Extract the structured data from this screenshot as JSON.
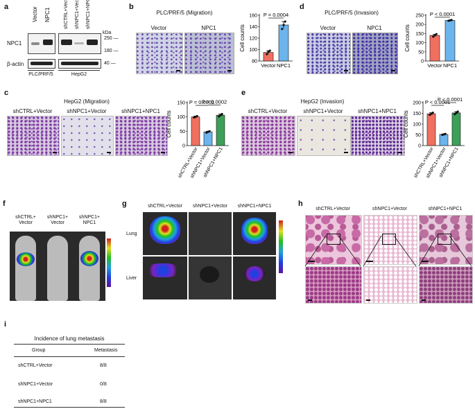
{
  "figure": {
    "panel_labels": [
      "a",
      "b",
      "c",
      "d",
      "e",
      "f",
      "g",
      "h",
      "i"
    ],
    "a": {
      "lane_labels_left": [
        "Vector",
        "NPC1"
      ],
      "lane_labels_right": [
        "shCTRL+Vector",
        "shNPC1+Vector",
        "shNPC1+NPC1"
      ],
      "kda_label": "kDa",
      "row_labels": [
        "NPC1",
        "β-actin"
      ],
      "markers": [
        "250",
        "180",
        "40"
      ],
      "cell_lines": [
        "PLC/PRF/5",
        "HepG2"
      ]
    },
    "b": {
      "title": "PLC/PRF/5 (Migration)",
      "image_labels": [
        "Vector",
        "NPC1"
      ]
    },
    "c": {
      "title": "HepG2 (Migration)",
      "image_labels": [
        "shCTRL+Vector",
        "shNPC1+Vector",
        "shNPC1+NPC1"
      ]
    },
    "d": {
      "title": "PLC/PRF/5 (Invasion)",
      "image_labels": [
        "Vector",
        "NPC1"
      ]
    },
    "e": {
      "title": "HepG2 (Invasion)",
      "image_labels": [
        "shCTRL+Vector",
        "shNPC1+Vector",
        "shNPC1+NPC1"
      ]
    },
    "f": {
      "image_labels": [
        "shCTRL+\nVector",
        "shNPC1+\nVector",
        "shNPC1+\nNPC1"
      ]
    },
    "g": {
      "column_labels": [
        "shCTRL+Vector",
        "shNPC1+Vector",
        "shNPC1+NPC1"
      ],
      "row_labels": [
        "Lung",
        "Liver"
      ]
    },
    "h": {
      "column_labels": [
        "shCTRL+Vector",
        "shNPC1+Vector",
        "shNPC1+NPC1"
      ]
    },
    "i": {
      "title": "Incidence of lung metastasis",
      "headers": [
        "Group",
        "Metastasis"
      ],
      "rows": [
        {
          "group": "shCTRL+Vector",
          "value": "8/8"
        },
        {
          "group": "shNPC1+Vector",
          "value": "0/8"
        },
        {
          "group": "shNPC1+NPC1",
          "value": "8/8"
        }
      ]
    }
  },
  "chart_data": [
    {
      "id": "b",
      "type": "bar",
      "categories": [
        "Vector",
        "NPC1"
      ],
      "values": [
        95,
        143
      ],
      "points": [
        [
          92,
          96,
          98
        ],
        [
          136,
          143,
          149
        ]
      ],
      "errors": [
        3,
        6
      ],
      "colors": [
        "#f07060",
        "#6cb4ec"
      ],
      "ylabel": "Cell counts",
      "ylim": [
        80,
        160
      ],
      "yticks": [
        80,
        100,
        120,
        140,
        160
      ],
      "annotations": [
        {
          "text": "P = 0.0004",
          "from": 0,
          "to": 1
        }
      ]
    },
    {
      "id": "c",
      "type": "bar",
      "categories": [
        "shCTRL+Vector",
        "shNPC1+Vector",
        "shNPC1+NPC1"
      ],
      "values": [
        100,
        48,
        106
      ],
      "points": [
        [
          98,
          100,
          103
        ],
        [
          45,
          48,
          50
        ],
        [
          102,
          106,
          110
        ]
      ],
      "errors": [
        3,
        2,
        4
      ],
      "colors": [
        "#f07060",
        "#6cb4ec",
        "#3da058"
      ],
      "ylabel": "Cell counts",
      "ylim": [
        0,
        150
      ],
      "yticks": [
        0,
        50,
        100,
        150
      ],
      "annotations": [
        {
          "text": "P = 0.0001",
          "from": 0,
          "to": 1
        },
        {
          "text": "P = 0.0002",
          "from": 1,
          "to": 2
        }
      ]
    },
    {
      "id": "d",
      "type": "bar",
      "categories": [
        "Vector",
        "NPC1"
      ],
      "values": [
        140,
        222
      ],
      "points": [
        [
          133,
          140,
          147
        ],
        [
          220,
          222,
          224
        ]
      ],
      "errors": [
        6,
        2
      ],
      "colors": [
        "#f07060",
        "#6cb4ec"
      ],
      "ylabel": "Cell counts",
      "ylim": [
        0,
        250
      ],
      "yticks": [
        0,
        50,
        100,
        150,
        200,
        250
      ],
      "annotations": [
        {
          "text": "P < 0.0001",
          "from": 0,
          "to": 1
        }
      ]
    },
    {
      "id": "e",
      "type": "bar",
      "categories": [
        "shCTRL+Vector",
        "shNPC1+Vector",
        "shNPC1+NPC1"
      ],
      "values": [
        148,
        52,
        152
      ],
      "points": [
        [
          143,
          148,
          153
        ],
        [
          50,
          52,
          54
        ],
        [
          146,
          152,
          158
        ]
      ],
      "errors": [
        5,
        2,
        6
      ],
      "colors": [
        "#f07060",
        "#6cb4ec",
        "#3da058"
      ],
      "ylabel": "Cell counts",
      "ylim": [
        0,
        200
      ],
      "yticks": [
        0,
        50,
        100,
        150,
        200
      ],
      "annotations": [
        {
          "text": "P < 0.0001",
          "from": 0,
          "to": 1
        },
        {
          "text": "P < 0.0001",
          "from": 1,
          "to": 2
        }
      ]
    }
  ]
}
